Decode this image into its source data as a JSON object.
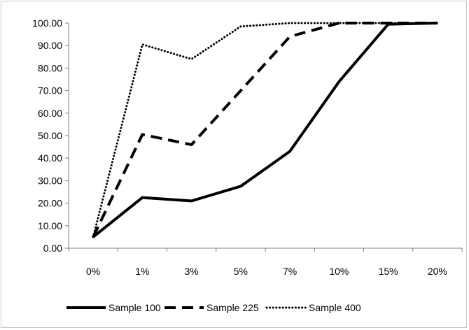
{
  "chart_data": {
    "type": "line",
    "title": "",
    "xlabel": "",
    "ylabel": "",
    "ylim": [
      0,
      100
    ],
    "y_tick_step": 10,
    "y_tick_labels": [
      "0.00",
      "10.00",
      "20.00",
      "30.00",
      "40.00",
      "50.00",
      "60.00",
      "70.00",
      "80.00",
      "90.00",
      "100.00"
    ],
    "categories": [
      "0%",
      "1%",
      "3%",
      "5%",
      "7%",
      "10%",
      "15%",
      "20%"
    ],
    "grid": false,
    "legend_position": "bottom",
    "series": [
      {
        "name": "Sample 100",
        "style": "solid",
        "color": "#000000",
        "values": [
          5.0,
          22.5,
          21.0,
          27.5,
          43.0,
          74.0,
          99.5,
          100.0
        ]
      },
      {
        "name": "Sample 225",
        "style": "dashed",
        "color": "#000000",
        "values": [
          5.0,
          50.5,
          46.0,
          70.0,
          94.0,
          100.0,
          100.0,
          100.0
        ]
      },
      {
        "name": "Sample 400",
        "style": "dotted",
        "color": "#000000",
        "values": [
          5.0,
          90.5,
          84.0,
          98.5,
          100.0,
          100.0,
          100.0,
          100.0
        ]
      }
    ]
  }
}
